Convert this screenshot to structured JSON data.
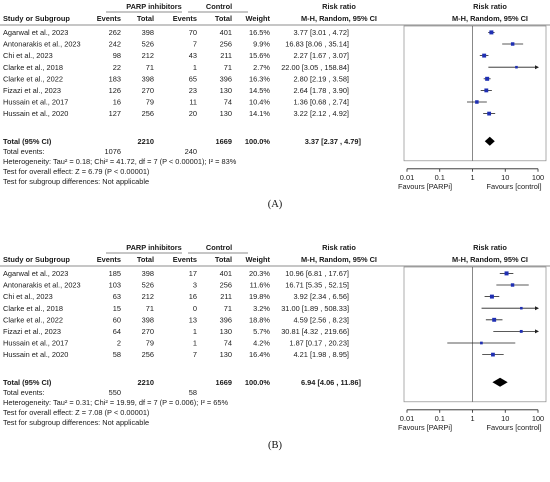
{
  "chart_data": [
    {
      "type": "forest",
      "panel_label": "(A)",
      "headers": {
        "group1": "PARP inhibitors",
        "group2": "Control",
        "rr_main": "Risk ratio",
        "rr_sub": "M-H, Random, 95% CI",
        "plot_main": "Risk ratio",
        "plot_sub": "M-H, Random, 95% CI",
        "study": "Study or Subgroup",
        "events1": "Events",
        "total1": "Total",
        "events2": "Events",
        "total2": "Total",
        "weight": "Weight"
      },
      "studies": [
        {
          "name": "Agarwal et al., 2023",
          "e1": "262",
          "t1": "398",
          "e2": "70",
          "t2": "401",
          "weight": "16.5%",
          "ci_text": "3.77 [3.01 , 4.72]",
          "rr": 3.77,
          "lo": 3.01,
          "hi": 4.72
        },
        {
          "name": "Antonarakis et al., 2023",
          "e1": "242",
          "t1": "526",
          "e2": "7",
          "t2": "256",
          "weight": "9.9%",
          "ci_text": "16.83 [8.06 , 35.14]",
          "rr": 16.83,
          "lo": 8.06,
          "hi": 35.14
        },
        {
          "name": "Chi et al., 2023",
          "e1": "98",
          "t1": "212",
          "e2": "43",
          "t2": "211",
          "weight": "15.6%",
          "ci_text": "2.27 [1.67 , 3.07]",
          "rr": 2.27,
          "lo": 1.67,
          "hi": 3.07
        },
        {
          "name": "Clarke et al., 2018",
          "e1": "22",
          "t1": "71",
          "e2": "1",
          "t2": "71",
          "weight": "2.7%",
          "ci_text": "22.00 [3.05 , 158.84]",
          "rr": 22.0,
          "lo": 3.05,
          "hi": 158.84
        },
        {
          "name": "Clarke et al., 2022",
          "e1": "183",
          "t1": "398",
          "e2": "65",
          "t2": "396",
          "weight": "16.3%",
          "ci_text": "2.80 [2.19 , 3.58]",
          "rr": 2.8,
          "lo": 2.19,
          "hi": 3.58
        },
        {
          "name": "Fizazi et al., 2023",
          "e1": "126",
          "t1": "270",
          "e2": "23",
          "t2": "130",
          "weight": "14.5%",
          "ci_text": "2.64 [1.78 , 3.90]",
          "rr": 2.64,
          "lo": 1.78,
          "hi": 3.9
        },
        {
          "name": "Hussain et al., 2017",
          "e1": "16",
          "t1": "79",
          "e2": "11",
          "t2": "74",
          "weight": "10.4%",
          "ci_text": "1.36 [0.68 , 2.74]",
          "rr": 1.36,
          "lo": 0.68,
          "hi": 2.74
        },
        {
          "name": "Hussain et al., 2020",
          "e1": "127",
          "t1": "256",
          "e2": "20",
          "t2": "130",
          "weight": "14.1%",
          "ci_text": "3.22 [2.12 , 4.92]",
          "rr": 3.22,
          "lo": 2.12,
          "hi": 4.92
        }
      ],
      "total": {
        "label": "Total (95% CI)",
        "t1": "2210",
        "t2": "1669",
        "weight": "100.0%",
        "ci_text": "3.37 [2.37 , 4.79]",
        "rr": 3.37,
        "lo": 2.37,
        "hi": 4.79
      },
      "total_events": {
        "label": "Total events:",
        "e1": "1076",
        "e2": "240"
      },
      "heterogeneity": "Heterogeneity: Tau² = 0.18; Chi² = 41.72, df = 7 (P < 0.00001); I² = 83%",
      "overall_effect": "Test for overall effect: Z = 6.79 (P < 0.00001)",
      "subgroup_diff": "Test for subgroup differences: Not applicable",
      "x_scale": "log",
      "x_ticks": [
        0.01,
        0.1,
        1,
        10,
        100
      ],
      "x_tick_labels": [
        "0.01",
        "0.1",
        "1",
        "10",
        "100"
      ],
      "favours_left": "Favours [PARPi]",
      "favours_right": "Favours [control]"
    },
    {
      "type": "forest",
      "panel_label": "(B)",
      "headers": {
        "group1": "PARP inhibitors",
        "group2": "Control",
        "rr_main": "Risk ratio",
        "rr_sub": "M-H, Random, 95% CI",
        "plot_main": "Risk ratio",
        "plot_sub": "M-H, Random, 95% CI",
        "study": "Study or Subgroup",
        "events1": "Events",
        "total1": "Total",
        "events2": "Events",
        "total2": "Total",
        "weight": "Weight"
      },
      "studies": [
        {
          "name": "Agarwal et al., 2023",
          "e1": "185",
          "t1": "398",
          "e2": "17",
          "t2": "401",
          "weight": "20.3%",
          "ci_text": "10.96 [6.81 , 17.67]",
          "rr": 10.96,
          "lo": 6.81,
          "hi": 17.67
        },
        {
          "name": "Antonarakis et al., 2023",
          "e1": "103",
          "t1": "526",
          "e2": "3",
          "t2": "256",
          "weight": "11.6%",
          "ci_text": "16.71 [5.35 , 52.15]",
          "rr": 16.71,
          "lo": 5.35,
          "hi": 52.15
        },
        {
          "name": "Chi et al., 2023",
          "e1": "63",
          "t1": "212",
          "e2": "16",
          "t2": "211",
          "weight": "19.8%",
          "ci_text": "3.92 [2.34 , 6.56]",
          "rr": 3.92,
          "lo": 2.34,
          "hi": 6.56
        },
        {
          "name": "Clarke et al., 2018",
          "e1": "15",
          "t1": "71",
          "e2": "0",
          "t2": "71",
          "weight": "3.2%",
          "ci_text": "31.00 [1.89 , 508.33]",
          "rr": 31.0,
          "lo": 1.89,
          "hi": 508.33
        },
        {
          "name": "Clarke et al., 2022",
          "e1": "60",
          "t1": "398",
          "e2": "13",
          "t2": "396",
          "weight": "18.8%",
          "ci_text": "4.59 [2.56 , 8.23]",
          "rr": 4.59,
          "lo": 2.56,
          "hi": 8.23
        },
        {
          "name": "Fizazi et al., 2023",
          "e1": "64",
          "t1": "270",
          "e2": "1",
          "t2": "130",
          "weight": "5.7%",
          "ci_text": "30.81 [4.32 , 219.66]",
          "rr": 30.81,
          "lo": 4.32,
          "hi": 219.66
        },
        {
          "name": "Hussain et al., 2017",
          "e1": "2",
          "t1": "79",
          "e2": "1",
          "t2": "74",
          "weight": "4.2%",
          "ci_text": "1.87 [0.17 , 20.23]",
          "rr": 1.87,
          "lo": 0.17,
          "hi": 20.23
        },
        {
          "name": "Hussain et al., 2020",
          "e1": "58",
          "t1": "256",
          "e2": "7",
          "t2": "130",
          "weight": "16.4%",
          "ci_text": "4.21 [1.98 , 8.95]",
          "rr": 4.21,
          "lo": 1.98,
          "hi": 8.95
        }
      ],
      "total": {
        "label": "Total (95% CI)",
        "t1": "2210",
        "t2": "1669",
        "weight": "100.0%",
        "ci_text": "6.94 [4.06 , 11.86]",
        "rr": 6.94,
        "lo": 4.06,
        "hi": 11.86
      },
      "total_events": {
        "label": "Total events:",
        "e1": "550",
        "e2": "58"
      },
      "heterogeneity": "Heterogeneity: Tau² = 0.31; Chi² = 19.99, df = 7 (P = 0.006); I² = 65%",
      "overall_effect": "Test for overall effect: Z = 7.08 (P < 0.00001)",
      "subgroup_diff": "Test for subgroup differences: Not applicable",
      "x_scale": "log",
      "x_ticks": [
        0.01,
        0.1,
        1,
        10,
        100
      ],
      "x_tick_labels": [
        "0.01",
        "0.1",
        "1",
        "10",
        "100"
      ],
      "favours_left": "Favours [PARPi]",
      "favours_right": "Favours [control]"
    }
  ],
  "colors": {
    "marker": "#1f2fb3",
    "line": "#222222",
    "diamond": "#000000",
    "rule": "#666666"
  }
}
